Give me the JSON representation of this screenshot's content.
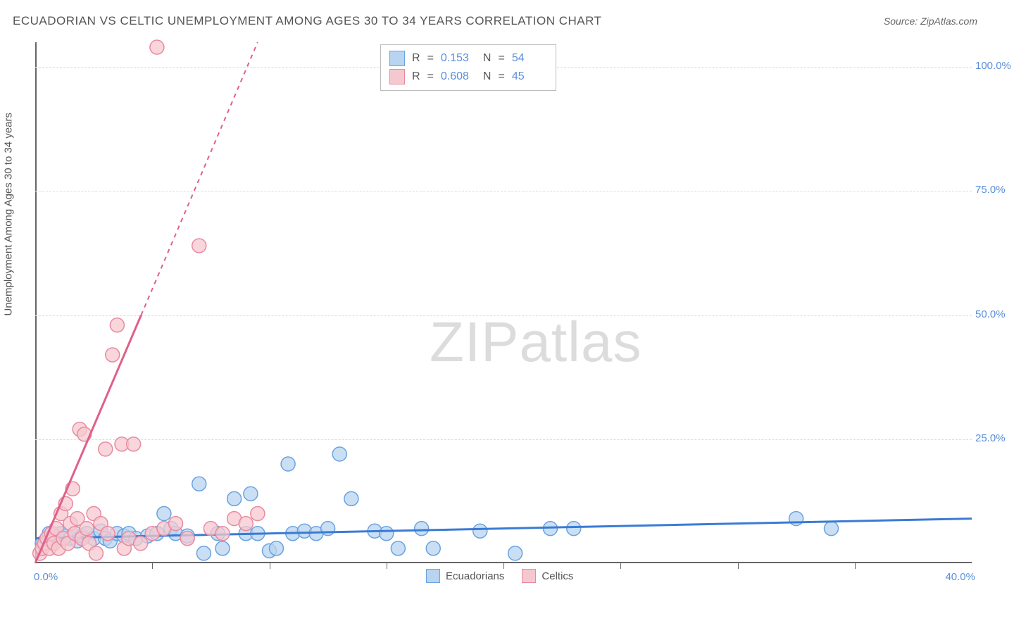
{
  "header": {
    "title": "ECUADORIAN VS CELTIC UNEMPLOYMENT AMONG AGES 30 TO 34 YEARS CORRELATION CHART",
    "source_prefix": "Source: ",
    "source": "ZipAtlas.com"
  },
  "y_axis": {
    "label": "Unemployment Among Ages 30 to 34 years",
    "ticks": [
      25.0,
      50.0,
      75.0,
      100.0
    ],
    "tick_labels": [
      "25.0%",
      "50.0%",
      "75.0%",
      "100.0%"
    ],
    "min": 0,
    "max": 105
  },
  "x_axis": {
    "min": 0,
    "max": 40,
    "origin_label": "0.0%",
    "max_label": "40.0%",
    "tick_positions": [
      5,
      10,
      15,
      20,
      25,
      30,
      35
    ]
  },
  "series": [
    {
      "name": "Ecuadorians",
      "color_fill": "#b8d4f0",
      "color_stroke": "#6aa3e0",
      "line_color": "#3a7bd5",
      "marker_radius": 10,
      "r": "0.153",
      "n": "54",
      "trend": {
        "x1": 0,
        "y1": 5,
        "x2": 40,
        "y2": 9
      },
      "points": [
        [
          0.3,
          4
        ],
        [
          0.5,
          5
        ],
        [
          0.6,
          6
        ],
        [
          0.8,
          4.5
        ],
        [
          1.0,
          5
        ],
        [
          1.1,
          6
        ],
        [
          1.3,
          5.5
        ],
        [
          1.5,
          5
        ],
        [
          1.7,
          6
        ],
        [
          1.8,
          4.5
        ],
        [
          2.0,
          5.5
        ],
        [
          2.2,
          6
        ],
        [
          2.5,
          5
        ],
        [
          2.8,
          6.5
        ],
        [
          3.0,
          5
        ],
        [
          3.2,
          4.5
        ],
        [
          3.5,
          6
        ],
        [
          3.8,
          5.5
        ],
        [
          4.0,
          6
        ],
        [
          4.3,
          5
        ],
        [
          4.8,
          5.5
        ],
        [
          5.2,
          6
        ],
        [
          5.5,
          10
        ],
        [
          5.8,
          7
        ],
        [
          6.0,
          6
        ],
        [
          6.5,
          5.5
        ],
        [
          7.0,
          16
        ],
        [
          7.2,
          2
        ],
        [
          7.8,
          6
        ],
        [
          8.0,
          3
        ],
        [
          8.5,
          13
        ],
        [
          9.0,
          6
        ],
        [
          9.2,
          14
        ],
        [
          9.5,
          6
        ],
        [
          10.0,
          2.5
        ],
        [
          10.3,
          3
        ],
        [
          10.8,
          20
        ],
        [
          11.0,
          6
        ],
        [
          11.5,
          6.5
        ],
        [
          12.0,
          6
        ],
        [
          12.5,
          7
        ],
        [
          13.0,
          22
        ],
        [
          13.5,
          13
        ],
        [
          14.5,
          6.5
        ],
        [
          15.0,
          6
        ],
        [
          15.5,
          3
        ],
        [
          16.5,
          7
        ],
        [
          17.0,
          3
        ],
        [
          19.0,
          6.5
        ],
        [
          20.5,
          2
        ],
        [
          22.0,
          7
        ],
        [
          23.0,
          7
        ],
        [
          32.5,
          9
        ],
        [
          34.0,
          7
        ]
      ]
    },
    {
      "name": "Celtics",
      "color_fill": "#f5c8d0",
      "color_stroke": "#e88aa0",
      "line_color": "#e06088",
      "marker_radius": 10,
      "r": "0.608",
      "n": "45",
      "trend": {
        "x1": 0,
        "y1": 0,
        "x2": 9.5,
        "y2": 105
      },
      "points": [
        [
          0.2,
          2
        ],
        [
          0.3,
          3
        ],
        [
          0.4,
          4
        ],
        [
          0.5,
          5
        ],
        [
          0.6,
          3
        ],
        [
          0.7,
          6
        ],
        [
          0.8,
          4
        ],
        [
          0.9,
          7
        ],
        [
          1.0,
          3
        ],
        [
          1.1,
          10
        ],
        [
          1.2,
          5
        ],
        [
          1.3,
          12
        ],
        [
          1.4,
          4
        ],
        [
          1.5,
          8
        ],
        [
          1.6,
          15
        ],
        [
          1.7,
          6
        ],
        [
          1.8,
          9
        ],
        [
          1.9,
          27
        ],
        [
          2.0,
          5
        ],
        [
          2.1,
          26
        ],
        [
          2.2,
          7
        ],
        [
          2.3,
          4
        ],
        [
          2.5,
          10
        ],
        [
          2.6,
          2
        ],
        [
          2.8,
          8
        ],
        [
          3.0,
          23
        ],
        [
          3.1,
          6
        ],
        [
          3.3,
          42
        ],
        [
          3.5,
          48
        ],
        [
          3.7,
          24
        ],
        [
          3.8,
          3
        ],
        [
          4.0,
          5
        ],
        [
          4.2,
          24
        ],
        [
          4.5,
          4
        ],
        [
          5.0,
          6
        ],
        [
          5.2,
          104
        ],
        [
          5.5,
          7
        ],
        [
          6.0,
          8
        ],
        [
          6.5,
          5
        ],
        [
          7.0,
          64
        ],
        [
          7.5,
          7
        ],
        [
          8.0,
          6
        ],
        [
          8.5,
          9
        ],
        [
          9.0,
          8
        ],
        [
          9.5,
          10
        ]
      ]
    }
  ],
  "legend_bottom": [
    {
      "label": "Ecuadorians",
      "fill": "#b8d4f0",
      "stroke": "#6aa3e0"
    },
    {
      "label": "Celtics",
      "fill": "#f5c8d0",
      "stroke": "#e88aa0"
    }
  ],
  "watermark": {
    "zip": "ZIP",
    "atlas": "atlas"
  },
  "legend_labels": {
    "r": "R",
    "eq": "=",
    "n": "N"
  }
}
